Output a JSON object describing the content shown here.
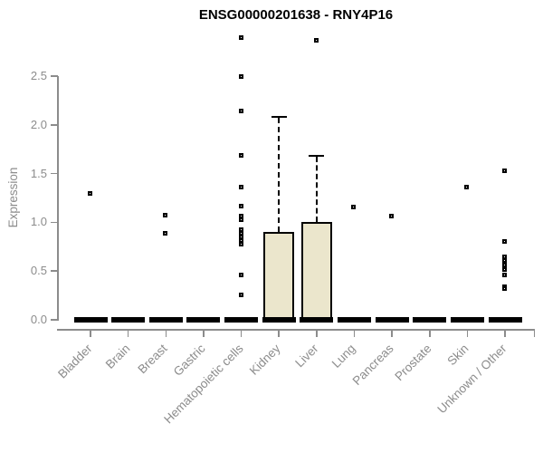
{
  "title": "ENSG00000201638 - RNY4P16",
  "y_axis": {
    "label": "Expression",
    "ticks": [
      {
        "label": "0.0",
        "value": 0.0
      },
      {
        "label": "0.5",
        "value": 0.5
      },
      {
        "label": "1.0",
        "value": 1.0
      },
      {
        "label": "1.5",
        "value": 1.5
      },
      {
        "label": "2.0",
        "value": 2.0
      },
      {
        "label": "2.5",
        "value": 2.5
      }
    ]
  },
  "colors": {
    "axis_line": "#8c8c8c",
    "tick_label": "#8c8c8c",
    "title": "#000000",
    "box_fill": "#ebe6cc",
    "box_border": "#000000",
    "point": "#000000"
  },
  "chart_data": {
    "type": "box",
    "title": "ENSG00000201638 - RNY4P16",
    "xlabel": "",
    "ylabel": "Expression",
    "ylim": [
      0,
      2.9
    ],
    "grid": false,
    "legend": "none",
    "categories": [
      "Bladder",
      "Brain",
      "Breast",
      "Gastric",
      "Hematopoietic cells",
      "Kidney",
      "Liver",
      "Lung",
      "Pancreas",
      "Prostate",
      "Skin",
      "Unknown / Other"
    ],
    "boxes": [
      {
        "category": "Bladder",
        "q1": 0,
        "median": 0,
        "q3": 0,
        "whisker_low": 0,
        "whisker_high": 0,
        "outliers": [
          1.29
        ]
      },
      {
        "category": "Brain",
        "q1": 0,
        "median": 0,
        "q3": 0,
        "whisker_low": 0,
        "whisker_high": 0,
        "outliers": []
      },
      {
        "category": "Breast",
        "q1": 0,
        "median": 0,
        "q3": 0,
        "whisker_low": 0,
        "whisker_high": 0,
        "outliers": [
          1.07,
          0.88
        ]
      },
      {
        "category": "Gastric",
        "q1": 0,
        "median": 0,
        "q3": 0,
        "whisker_low": 0,
        "whisker_high": 0,
        "outliers": []
      },
      {
        "category": "Hematopoietic cells",
        "q1": 0,
        "median": 0,
        "q3": 0,
        "whisker_low": 0,
        "whisker_high": 0,
        "outliers": [
          2.89,
          2.49,
          2.14,
          1.68,
          1.36,
          1.16,
          1.06,
          1.02,
          0.92,
          0.88,
          0.85,
          0.81,
          0.77,
          0.46,
          0.25
        ]
      },
      {
        "category": "Kidney",
        "q1": 0,
        "median": 0,
        "q3": 0.9,
        "whisker_low": 0,
        "whisker_high": 2.08,
        "outliers": []
      },
      {
        "category": "Liver",
        "q1": 0,
        "median": 0,
        "q3": 1.0,
        "whisker_low": 0,
        "whisker_high": 1.68,
        "outliers": [
          2.86
        ]
      },
      {
        "category": "Lung",
        "q1": 0,
        "median": 0,
        "q3": 0,
        "whisker_low": 0,
        "whisker_high": 0,
        "outliers": [
          1.15
        ]
      },
      {
        "category": "Pancreas",
        "q1": 0,
        "median": 0,
        "q3": 0,
        "whisker_low": 0,
        "whisker_high": 0,
        "outliers": [
          1.06
        ]
      },
      {
        "category": "Prostate",
        "q1": 0,
        "median": 0,
        "q3": 0,
        "whisker_low": 0,
        "whisker_high": 0,
        "outliers": []
      },
      {
        "category": "Skin",
        "q1": 0,
        "median": 0,
        "q3": 0,
        "whisker_low": 0,
        "whisker_high": 0,
        "outliers": [
          1.36
        ]
      },
      {
        "category": "Unknown / Other",
        "q1": 0,
        "median": 0,
        "q3": 0,
        "whisker_low": 0,
        "whisker_high": 0,
        "outliers": [
          1.52,
          0.8,
          0.64,
          0.6,
          0.56,
          0.51,
          0.46,
          0.33,
          0.32
        ]
      }
    ]
  }
}
